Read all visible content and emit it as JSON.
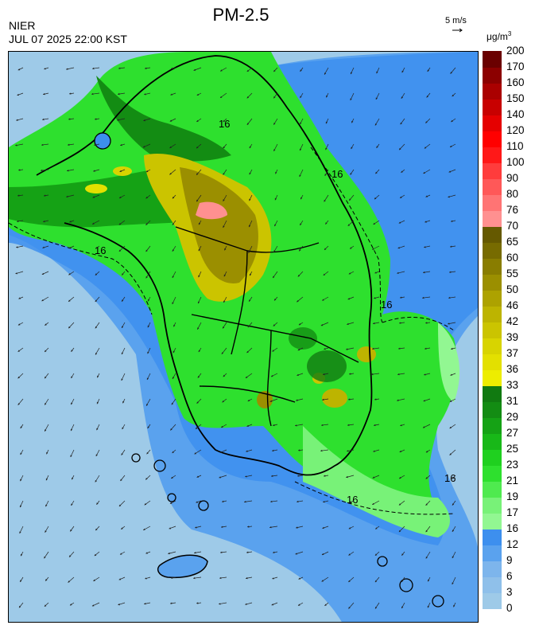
{
  "header": {
    "title": "PM-2.5",
    "agency": "NIER",
    "timestamp": "JUL 07 2025 22:00 KST",
    "wind_scale_label": "5 m/s",
    "unit_main": "μg/m",
    "unit_exp": "3"
  },
  "legend": {
    "labels": [
      "0",
      "3",
      "6",
      "9",
      "12",
      "16",
      "17",
      "19",
      "21",
      "23",
      "25",
      "27",
      "29",
      "31",
      "33",
      "36",
      "37",
      "39",
      "42",
      "46",
      "50",
      "55",
      "60",
      "65",
      "70",
      "76",
      "80",
      "90",
      "100",
      "110",
      "120",
      "140",
      "150",
      "160",
      "170",
      "200"
    ],
    "bins": [
      {
        "color": "#9ecae8"
      },
      {
        "color": "#8fc0ea"
      },
      {
        "color": "#7db5ec"
      },
      {
        "color": "#5aa2ee"
      },
      {
        "color": "#3d8fee"
      },
      {
        "color": "#92f792"
      },
      {
        "color": "#78f278"
      },
      {
        "color": "#4fea4f"
      },
      {
        "color": "#2ee02e"
      },
      {
        "color": "#1fd01f"
      },
      {
        "color": "#18b818"
      },
      {
        "color": "#15a215"
      },
      {
        "color": "#138c13"
      },
      {
        "color": "#117a11"
      },
      {
        "color": "#eded00"
      },
      {
        "color": "#e3e000"
      },
      {
        "color": "#d8d400"
      },
      {
        "color": "#cbc400"
      },
      {
        "color": "#bdb400"
      },
      {
        "color": "#ada200"
      },
      {
        "color": "#9b8f00"
      },
      {
        "color": "#897d00"
      },
      {
        "color": "#776b00"
      },
      {
        "color": "#655900"
      },
      {
        "color": "#ff9090"
      },
      {
        "color": "#ff7474"
      },
      {
        "color": "#ff5858"
      },
      {
        "color": "#ff3c3c"
      },
      {
        "color": "#ff1818"
      },
      {
        "color": "#ff0000"
      },
      {
        "color": "#e50000"
      },
      {
        "color": "#c80000"
      },
      {
        "color": "#aa0000"
      },
      {
        "color": "#8c0000"
      },
      {
        "color": "#6a0000"
      }
    ]
  },
  "map": {
    "contour_labels": [
      "16",
      "16",
      "16",
      "16",
      "16",
      "16"
    ]
  }
}
